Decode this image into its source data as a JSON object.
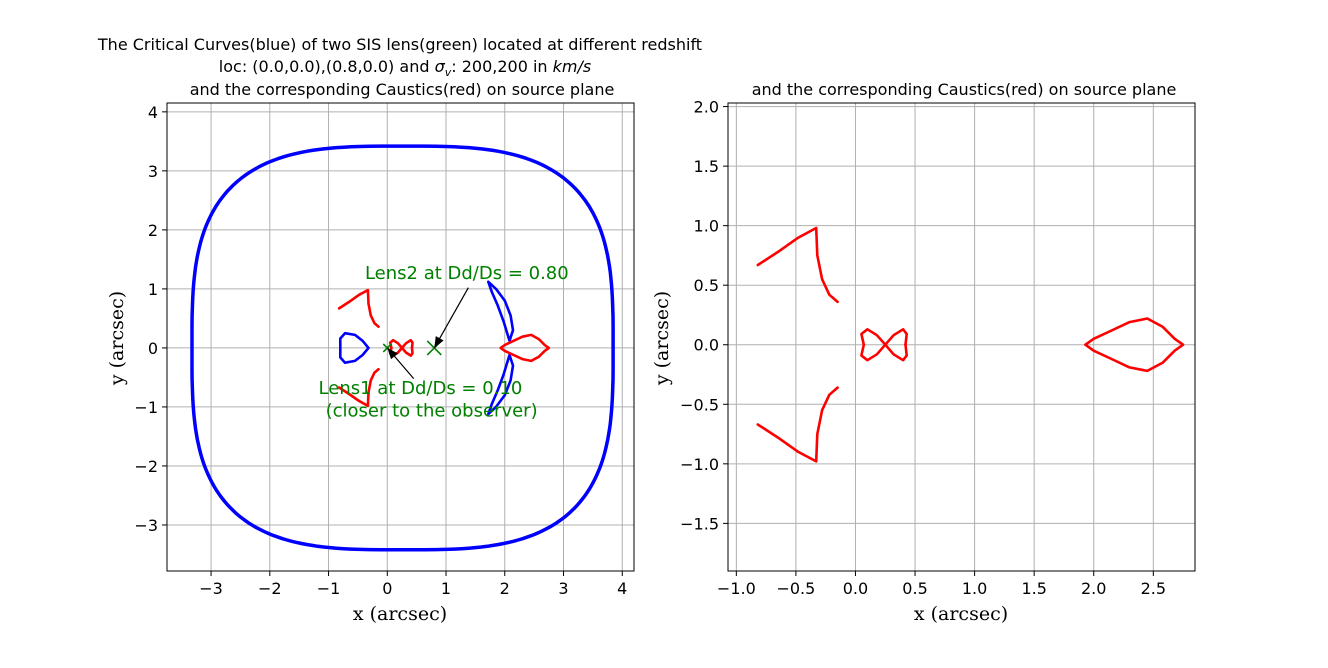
{
  "figure": {
    "title_left_line1": "The Critical Curves(blue) of two SIS lens(green) located at different redshift",
    "title_left_line2_prefix": "loc: (0.0,0.0),(0.8,0.0) and ",
    "title_left_line2_sigma": "σ",
    "title_left_line2_sub": "v",
    "title_left_line2_mid": ": 200,200 in ",
    "title_left_line2_unit": "km/s",
    "title_left_line3": "and the corresponding Caustics(red) on source plane",
    "title_right": "and the corresponding Caustics(red) on source plane"
  },
  "colors": {
    "critical": "#0000ff",
    "caustic": "#ff0000",
    "lens": "#008000",
    "grid": "#b0b0b0",
    "arrow": "#000000"
  },
  "chart_data": [
    {
      "type": "scatter",
      "name": "left-panel",
      "title": "The Critical Curves(blue) of two SIS lens(green) located at different redshift / loc: (0.0,0.0),(0.8,0.0) and σv: 200,200 in km/s / and the corresponding Caustics(red) on source plane",
      "xlabel": "x (arcsec)",
      "ylabel": "y (arcsec)",
      "xlim": [
        -3.75,
        4.2
      ],
      "ylim": [
        -3.78,
        4.15
      ],
      "xticks": [
        -3,
        -2,
        -1,
        0,
        1,
        2,
        3,
        4
      ],
      "yticks": [
        -3,
        -2,
        -1,
        0,
        1,
        2,
        3,
        4
      ],
      "grid": true,
      "outer_critical_curve": {
        "x_min": -3.32,
        "x_max": 3.85,
        "y_min": -3.42,
        "y_max": 3.42,
        "x_center": 0.26,
        "squareness": 3.2
      },
      "lenses": [
        {
          "name": "Lens1",
          "x": 0.0,
          "y": 0.0,
          "marker": "x",
          "size": "small"
        },
        {
          "name": "Lens2",
          "x": 0.8,
          "y": 0.0,
          "marker": "x",
          "size": "large"
        }
      ],
      "annotations": [
        {
          "text": "Lens2 at Dd/Ds = 0.80",
          "text_x": -0.38,
          "text_y": 1.17,
          "arrow_from_x": 1.38,
          "arrow_from_y": 1.02,
          "arrow_to_x": 0.8,
          "arrow_to_y": 0.0
        },
        {
          "text": "Lens1 at Dd/Ds = 0.10",
          "text_x": -1.17,
          "text_y": -0.78,
          "arrow_from_x": 0.45,
          "arrow_from_y": -0.52,
          "arrow_to_x": 0.0,
          "arrow_to_y": 0.0
        },
        {
          "text": "(closer to the observer)",
          "text_x": -1.05,
          "text_y": -1.16
        }
      ],
      "inner_critical_curves": [
        {
          "name": "left-heart",
          "points": [
            [
              -0.32,
              0.0
            ],
            [
              -0.42,
              0.12
            ],
            [
              -0.55,
              0.22
            ],
            [
              -0.72,
              0.25
            ],
            [
              -0.8,
              0.16
            ],
            [
              -0.8,
              0.0
            ],
            [
              -0.8,
              -0.16
            ],
            [
              -0.72,
              -0.25
            ],
            [
              -0.55,
              -0.22
            ],
            [
              -0.42,
              -0.12
            ],
            [
              -0.32,
              0.0
            ]
          ]
        },
        {
          "name": "right-lobe-upper",
          "points": [
            [
              1.72,
              1.12
            ],
            [
              1.85,
              1.0
            ],
            [
              2.0,
              0.8
            ],
            [
              2.1,
              0.55
            ],
            [
              2.14,
              0.3
            ],
            [
              2.08,
              0.12
            ],
            [
              1.98,
              0.45
            ],
            [
              1.88,
              0.72
            ],
            [
              1.78,
              0.95
            ],
            [
              1.72,
              1.12
            ]
          ]
        },
        {
          "name": "right-lobe-lower",
          "points": [
            [
              1.72,
              -1.12
            ],
            [
              1.85,
              -1.0
            ],
            [
              2.0,
              -0.8
            ],
            [
              2.1,
              -0.55
            ],
            [
              2.14,
              -0.3
            ],
            [
              2.08,
              -0.12
            ],
            [
              1.98,
              -0.45
            ],
            [
              1.88,
              -0.72
            ],
            [
              1.78,
              -0.95
            ],
            [
              1.72,
              -1.12
            ]
          ]
        }
      ],
      "caustics": [
        {
          "name": "left-upper-wing",
          "points": [
            [
              -0.82,
              0.67
            ],
            [
              -0.65,
              0.78
            ],
            [
              -0.48,
              0.9
            ],
            [
              -0.33,
              0.98
            ],
            [
              -0.32,
              0.75
            ],
            [
              -0.28,
              0.55
            ],
            [
              -0.22,
              0.42
            ],
            [
              -0.15,
              0.36
            ]
          ]
        },
        {
          "name": "left-lower-wing",
          "points": [
            [
              -0.82,
              -0.67
            ],
            [
              -0.65,
              -0.78
            ],
            [
              -0.48,
              -0.9
            ],
            [
              -0.33,
              -0.98
            ],
            [
              -0.32,
              -0.75
            ],
            [
              -0.28,
              -0.55
            ],
            [
              -0.22,
              -0.42
            ],
            [
              -0.15,
              -0.36
            ]
          ]
        },
        {
          "name": "butterfly-upper-left",
          "points": [
            [
              0.25,
              0.0
            ],
            [
              0.18,
              0.08
            ],
            [
              0.1,
              0.13
            ],
            [
              0.05,
              0.09
            ],
            [
              0.07,
              0.0
            ]
          ]
        },
        {
          "name": "butterfly-upper-right",
          "points": [
            [
              0.25,
              0.0
            ],
            [
              0.32,
              0.08
            ],
            [
              0.4,
              0.13
            ],
            [
              0.43,
              0.09
            ],
            [
              0.42,
              0.0
            ]
          ]
        },
        {
          "name": "butterfly-lower-left",
          "points": [
            [
              0.25,
              0.0
            ],
            [
              0.18,
              -0.08
            ],
            [
              0.1,
              -0.13
            ],
            [
              0.05,
              -0.09
            ],
            [
              0.07,
              0.0
            ]
          ]
        },
        {
          "name": "butterfly-lower-right",
          "points": [
            [
              0.25,
              0.0
            ],
            [
              0.32,
              -0.08
            ],
            [
              0.4,
              -0.13
            ],
            [
              0.43,
              -0.09
            ],
            [
              0.42,
              0.0
            ]
          ]
        },
        {
          "name": "right-lens-shape",
          "points": [
            [
              1.93,
              0.0
            ],
            [
              2.0,
              -0.05
            ],
            [
              2.15,
              -0.12
            ],
            [
              2.3,
              -0.19
            ],
            [
              2.45,
              -0.22
            ],
            [
              2.58,
              -0.15
            ],
            [
              2.68,
              -0.05
            ],
            [
              2.75,
              0.0
            ],
            [
              2.68,
              0.05
            ],
            [
              2.58,
              0.15
            ],
            [
              2.45,
              0.22
            ],
            [
              2.3,
              0.19
            ],
            [
              2.15,
              0.12
            ],
            [
              2.0,
              0.05
            ],
            [
              1.93,
              0.0
            ]
          ]
        }
      ]
    },
    {
      "type": "scatter",
      "name": "right-panel",
      "title": "and the corresponding Caustics(red) on source plane",
      "xlabel": "x (arcsec)",
      "ylabel": "y (arcsec)",
      "xlim": [
        -1.07,
        2.85
      ],
      "ylim": [
        -1.9,
        2.03
      ],
      "xticks": [
        -1.0,
        -0.5,
        0.0,
        0.5,
        1.0,
        1.5,
        2.0,
        2.5
      ],
      "xtick_labels": [
        "−1.0",
        "−0.5",
        "0.0",
        "0.5",
        "1.0",
        "1.5",
        "2.0",
        "2.5"
      ],
      "yticks": [
        -1.5,
        -1.0,
        -0.5,
        0.0,
        0.5,
        1.0,
        1.5,
        2.0
      ],
      "ytick_labels": [
        "−1.5",
        "−1.0",
        "−0.5",
        "0.0",
        "0.5",
        "1.0",
        "1.5",
        "2.0"
      ],
      "grid": true,
      "caustics": [
        {
          "name": "left-upper-wing",
          "points": [
            [
              -0.82,
              0.67
            ],
            [
              -0.65,
              0.78
            ],
            [
              -0.48,
              0.9
            ],
            [
              -0.33,
              0.98
            ],
            [
              -0.32,
              0.75
            ],
            [
              -0.28,
              0.55
            ],
            [
              -0.22,
              0.42
            ],
            [
              -0.15,
              0.36
            ]
          ]
        },
        {
          "name": "left-lower-wing",
          "points": [
            [
              -0.82,
              -0.67
            ],
            [
              -0.65,
              -0.78
            ],
            [
              -0.48,
              -0.9
            ],
            [
              -0.33,
              -0.98
            ],
            [
              -0.32,
              -0.75
            ],
            [
              -0.28,
              -0.55
            ],
            [
              -0.22,
              -0.42
            ],
            [
              -0.15,
              -0.36
            ]
          ]
        },
        {
          "name": "butterfly-upper-left",
          "points": [
            [
              0.25,
              0.0
            ],
            [
              0.18,
              0.08
            ],
            [
              0.1,
              0.13
            ],
            [
              0.05,
              0.09
            ],
            [
              0.07,
              0.0
            ]
          ]
        },
        {
          "name": "butterfly-upper-right",
          "points": [
            [
              0.25,
              0.0
            ],
            [
              0.32,
              0.08
            ],
            [
              0.4,
              0.13
            ],
            [
              0.43,
              0.09
            ],
            [
              0.42,
              0.0
            ]
          ]
        },
        {
          "name": "butterfly-lower-left",
          "points": [
            [
              0.25,
              0.0
            ],
            [
              0.18,
              -0.08
            ],
            [
              0.1,
              -0.13
            ],
            [
              0.05,
              -0.09
            ],
            [
              0.07,
              0.0
            ]
          ]
        },
        {
          "name": "butterfly-lower-right",
          "points": [
            [
              0.25,
              0.0
            ],
            [
              0.32,
              -0.08
            ],
            [
              0.4,
              -0.13
            ],
            [
              0.43,
              -0.09
            ],
            [
              0.42,
              0.0
            ]
          ]
        },
        {
          "name": "right-lens-shape",
          "points": [
            [
              1.93,
              0.0
            ],
            [
              2.0,
              -0.05
            ],
            [
              2.15,
              -0.12
            ],
            [
              2.3,
              -0.19
            ],
            [
              2.45,
              -0.22
            ],
            [
              2.58,
              -0.15
            ],
            [
              2.68,
              -0.05
            ],
            [
              2.75,
              0.0
            ],
            [
              2.68,
              0.05
            ],
            [
              2.58,
              0.15
            ],
            [
              2.45,
              0.22
            ],
            [
              2.3,
              0.19
            ],
            [
              2.15,
              0.12
            ],
            [
              2.0,
              0.05
            ],
            [
              1.93,
              0.0
            ]
          ]
        }
      ]
    }
  ]
}
